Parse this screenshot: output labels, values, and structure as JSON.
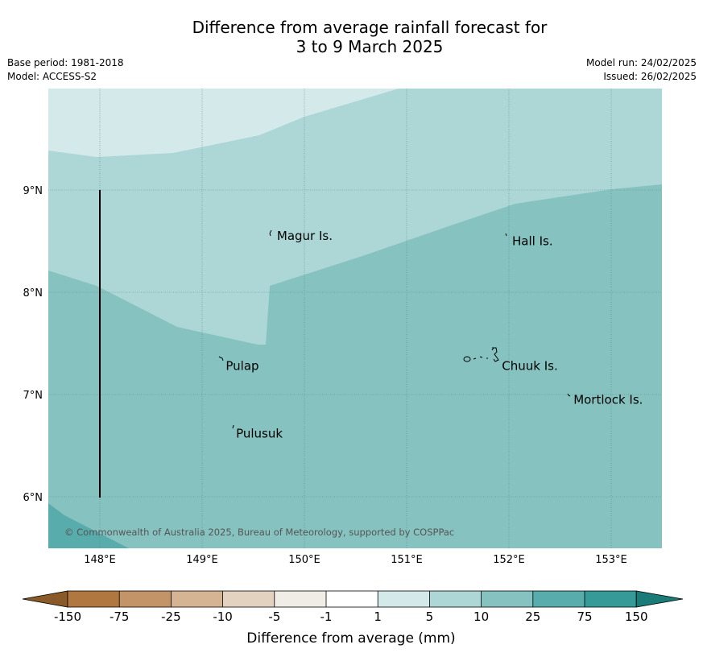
{
  "title": {
    "line1": "Difference from average rainfall forecast for",
    "line2": "3 to 9 March 2025"
  },
  "meta": {
    "base_period": "Base period: 1981-2018",
    "model": "Model: ACCESS-S2",
    "model_run": "Model run: 24/02/2025",
    "issued": "Issued: 26/02/2025"
  },
  "axes": {
    "lon_ticks": [
      "148°E",
      "149°E",
      "150°E",
      "151°E",
      "152°E",
      "153°E"
    ],
    "lat_ticks": [
      "9°N",
      "8°N",
      "7°N",
      "6°N"
    ]
  },
  "places": [
    {
      "name": "Magur Is.",
      "lon": 149.7,
      "lat": 8.55
    },
    {
      "name": "Hall Is.",
      "lon": 152.0,
      "lat": 8.5
    },
    {
      "name": "Pulap",
      "lon": 149.2,
      "lat": 7.28
    },
    {
      "name": "Chuuk Is.",
      "lon": 151.9,
      "lat": 7.28
    },
    {
      "name": "Mortlock Is.",
      "lon": 152.6,
      "lat": 6.95
    },
    {
      "name": "Pulusuk",
      "lon": 149.3,
      "lat": 6.62
    }
  ],
  "copyright": "© Commonwealth of Australia 2025, Bureau of Meteorology, supported by COSPPac",
  "legend": {
    "title": "Difference from average (mm)",
    "ticks": [
      "-150",
      "-75",
      "-25",
      "-10",
      "-5",
      "-1",
      "1",
      "5",
      "10",
      "25",
      "75",
      "150"
    ],
    "colors": [
      "#8a5a28",
      "#b07840",
      "#c29467",
      "#d4b492",
      "#e4d2c0",
      "#f0ece6",
      "#ffffff",
      "#d4e9e9",
      "#acd7d6",
      "#86c2c0",
      "#58acab",
      "#369a99",
      "#1a7c79"
    ]
  },
  "colors": {
    "band_light": "#d4e9e9",
    "band_mid": "#acd7d6",
    "band_main": "#86c2c0",
    "band_dark": "#58acab"
  }
}
